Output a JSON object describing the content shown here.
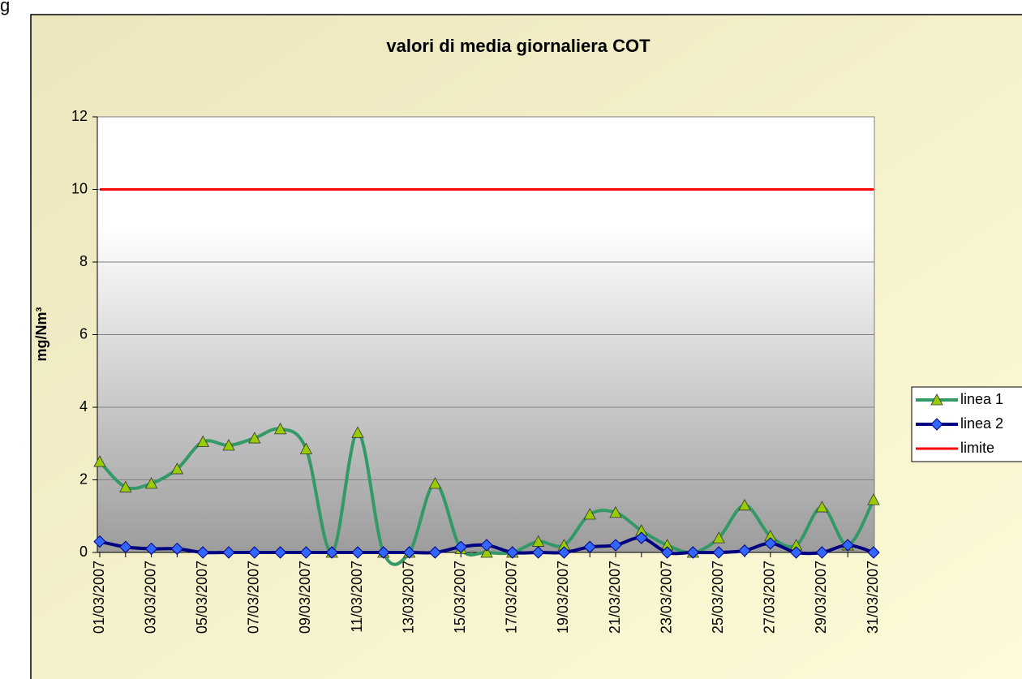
{
  "fragment": "g",
  "chart_data": {
    "type": "line",
    "title": "valori di media giornaliera  COT",
    "y_label": "mg/Nm³",
    "categories": [
      "01/03/2007",
      null,
      "03/03/2007",
      null,
      "05/03/2007",
      null,
      "07/03/2007",
      null,
      "09/03/2007",
      null,
      "11/03/2007",
      null,
      "13/03/2007",
      null,
      "15/03/2007",
      null,
      "17/03/2007",
      null,
      "19/03/2007",
      null,
      "21/03/2007",
      null,
      "23/03/2007",
      null,
      "25/03/2007",
      null,
      "27/03/2007",
      null,
      "29/03/2007",
      null,
      "31/03/2007"
    ],
    "series": [
      {
        "name": "linea 1",
        "color": "#339966",
        "marker": "triangle",
        "marker_color": "#99cc00",
        "smooth": true,
        "values": [
          2.5,
          1.8,
          1.9,
          2.3,
          3.05,
          2.95,
          3.15,
          3.4,
          2.85,
          0,
          3.3,
          0,
          0,
          1.9,
          0.1,
          0,
          0,
          0.3,
          0.2,
          1.05,
          1.1,
          0.6,
          0.2,
          0,
          0.4,
          1.3,
          0.45,
          0.2,
          1.25,
          0.2,
          1.45
        ]
      },
      {
        "name": "linea 2",
        "color": "#000080",
        "marker": "diamond",
        "marker_color": "#3366ff",
        "smooth": true,
        "values": [
          0.3,
          0.15,
          0.1,
          0.1,
          0,
          0,
          0,
          0,
          0,
          0,
          0,
          0,
          0,
          0,
          0.15,
          0.2,
          0,
          0,
          0,
          0.15,
          0.2,
          0.4,
          0,
          0,
          0,
          0.05,
          0.25,
          0,
          0,
          0.2,
          0
        ]
      },
      {
        "name": "limite",
        "color": "#ff0000",
        "marker": "none",
        "smooth": false,
        "values": [
          10,
          10,
          10,
          10,
          10,
          10,
          10,
          10,
          10,
          10,
          10,
          10,
          10,
          10,
          10,
          10,
          10,
          10,
          10,
          10,
          10,
          10,
          10,
          10,
          10,
          10,
          10,
          10,
          10,
          10,
          10
        ]
      }
    ],
    "ylim": [
      0,
      12
    ],
    "yticks": [
      0,
      2,
      4,
      6,
      8,
      10,
      12
    ],
    "grid": true,
    "legend": "right"
  }
}
